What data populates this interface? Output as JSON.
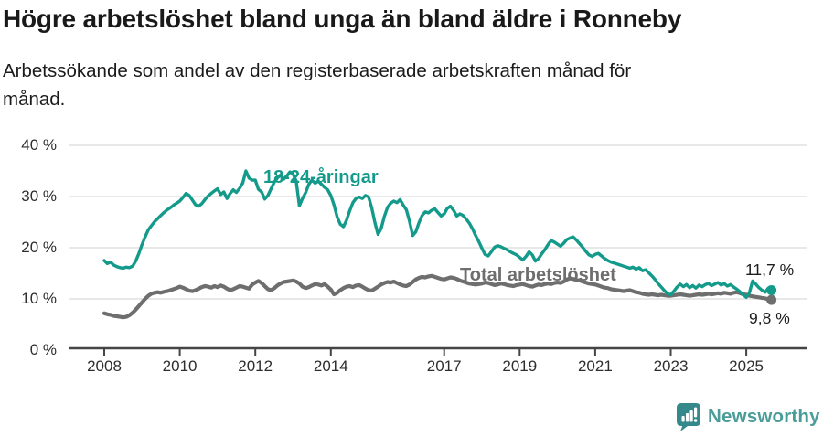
{
  "header": {
    "title": "Högre arbetslöshet bland unga än bland äldre i Ronneby",
    "subtitle": "Arbetssökande som andel av den registerbaserade arbetskraften månad för månad.",
    "subtitle_lines": [
      "Arbetssökande som andel av den registerbaserade arbetskraften månad för",
      "månad."
    ]
  },
  "chart_data": {
    "type": "line",
    "title": "Högre arbetslöshet bland unga än bland äldre i Ronneby",
    "subtitle": "Arbetssökande som andel av den registerbaserade arbetskraften månad för månad.",
    "x_unit": "month",
    "x_start": "2008-01",
    "x_end": "2025-09",
    "x_tick_years": [
      2008,
      2010,
      2012,
      2014,
      2017,
      2019,
      2021,
      2023,
      2025
    ],
    "y_ticks": [
      0,
      10,
      20,
      30,
      40
    ],
    "y_tick_labels": [
      "0 %",
      "10 %",
      "20 %",
      "30 %",
      "40 %"
    ],
    "ylim": [
      0,
      40
    ],
    "grid": "horizontal",
    "legend_position": "inline-labels",
    "series": [
      {
        "name": "18-24-åringar",
        "color": "#149a8b",
        "end_label": "11,7 %",
        "end_value": 11.7,
        "values": [
          17.5,
          16.9,
          17.2,
          16.6,
          16.3,
          16.1,
          16.0,
          16.2,
          16.1,
          16.4,
          17.4,
          18.9,
          20.6,
          22.1,
          23.5,
          24.3,
          25.1,
          25.7,
          26.3,
          26.9,
          27.4,
          27.8,
          28.3,
          28.7,
          29.1,
          29.8,
          30.6,
          30.2,
          29.3,
          28.4,
          28.1,
          28.6,
          29.4,
          30.1,
          30.6,
          31.1,
          31.5,
          30.4,
          30.9,
          29.6,
          30.6,
          31.3,
          30.8,
          31.6,
          32.6,
          35.0,
          33.6,
          33.2,
          33.2,
          31.4,
          30.9,
          29.5,
          30.2,
          31.5,
          32.8,
          33.6,
          34.2,
          33.4,
          34.0,
          34.8,
          34.4,
          33.0,
          28.2,
          29.6,
          30.8,
          32.4,
          33.2,
          32.6,
          33.0,
          32.4,
          31.8,
          31.3,
          30.2,
          28.4,
          26.0,
          24.6,
          24.1,
          25.4,
          27.2,
          28.8,
          29.6,
          29.9,
          29.6,
          30.2,
          29.9,
          27.8,
          24.9,
          22.6,
          23.8,
          26.1,
          27.9,
          28.7,
          29.1,
          28.8,
          29.4,
          28.3,
          27.4,
          25.2,
          22.4,
          23.1,
          24.9,
          26.3,
          27.0,
          26.8,
          27.3,
          27.6,
          26.9,
          26.2,
          26.6,
          27.7,
          28.1,
          27.3,
          26.2,
          26.6,
          26.3,
          25.6,
          24.8,
          23.7,
          22.4,
          21.2,
          19.9,
          18.7,
          18.4,
          19.2,
          20.1,
          20.4,
          20.2,
          19.9,
          19.6,
          19.2,
          18.9,
          18.6,
          18.1,
          17.6,
          18.3,
          19.2,
          18.6,
          17.4,
          17.9,
          18.8,
          19.6,
          20.6,
          21.4,
          21.1,
          20.7,
          20.3,
          20.9,
          21.6,
          21.9,
          22.1,
          21.5,
          20.8,
          20.1,
          19.3,
          18.6,
          18.3,
          18.7,
          18.9,
          18.4,
          17.9,
          17.5,
          17.2,
          17.0,
          16.8,
          16.6,
          16.4,
          16.2,
          16.0,
          16.2,
          15.8,
          16.1,
          15.5,
          15.7,
          15.1,
          14.5,
          13.8,
          13.0,
          12.3,
          11.6,
          11.0,
          10.8,
          11.5,
          12.3,
          12.9,
          12.4,
          12.8,
          12.2,
          12.6,
          12.1,
          12.7,
          12.4,
          12.8,
          13.0,
          12.6,
          12.9,
          13.2,
          12.7,
          13.0,
          12.5,
          12.8,
          12.3,
          11.9,
          11.4,
          10.8,
          10.3,
          11.2,
          13.5,
          12.9,
          12.2,
          11.7,
          11.3,
          12.1,
          11.7
        ]
      },
      {
        "name": "Total arbetslöshet",
        "color": "#6e6e6e",
        "end_label": "9,8 %",
        "end_value": 9.8,
        "values": [
          7.2,
          7.0,
          6.9,
          6.7,
          6.6,
          6.5,
          6.4,
          6.5,
          6.8,
          7.3,
          7.9,
          8.6,
          9.3,
          10.0,
          10.6,
          11.0,
          11.2,
          11.3,
          11.2,
          11.4,
          11.5,
          11.7,
          11.9,
          12.1,
          12.4,
          12.2,
          11.9,
          11.6,
          11.5,
          11.7,
          12.0,
          12.3,
          12.5,
          12.4,
          12.2,
          12.5,
          12.3,
          12.6,
          12.4,
          12.0,
          11.7,
          11.9,
          12.2,
          12.5,
          12.4,
          12.2,
          12.0,
          12.8,
          13.2,
          13.5,
          13.1,
          12.5,
          11.9,
          11.7,
          12.1,
          12.6,
          13.0,
          13.3,
          13.4,
          13.5,
          13.6,
          13.4,
          13.0,
          12.4,
          12.1,
          12.3,
          12.6,
          12.9,
          12.8,
          12.6,
          12.9,
          12.4,
          11.8,
          10.9,
          11.2,
          11.7,
          12.1,
          12.4,
          12.5,
          12.3,
          12.6,
          12.7,
          12.4,
          12.0,
          11.7,
          11.6,
          12.0,
          12.4,
          12.8,
          13.1,
          13.3,
          13.2,
          13.4,
          13.1,
          12.8,
          12.6,
          12.5,
          12.8,
          13.3,
          13.8,
          14.1,
          14.3,
          14.2,
          14.4,
          14.5,
          14.3,
          14.1,
          13.9,
          13.8,
          14.0,
          14.2,
          14.1,
          13.9,
          13.6,
          13.4,
          13.2,
          13.0,
          12.9,
          12.8,
          12.9,
          13.0,
          13.2,
          13.1,
          12.9,
          12.7,
          12.8,
          13.0,
          12.9,
          12.7,
          12.6,
          12.5,
          12.7,
          12.8,
          12.9,
          12.7,
          12.5,
          12.4,
          12.6,
          12.8,
          12.7,
          12.9,
          13.0,
          12.9,
          13.1,
          13.2,
          13.1,
          13.4,
          13.8,
          14.0,
          13.9,
          13.7,
          13.6,
          13.4,
          13.2,
          13.0,
          12.9,
          12.8,
          12.6,
          12.4,
          12.2,
          12.1,
          11.9,
          11.8,
          11.7,
          11.6,
          11.5,
          11.6,
          11.7,
          11.5,
          11.3,
          11.2,
          11.0,
          10.9,
          10.8,
          10.9,
          10.8,
          10.7,
          10.8,
          10.7,
          10.6,
          10.6,
          10.7,
          10.8,
          10.9,
          10.8,
          10.7,
          10.6,
          10.7,
          10.8,
          10.9,
          10.8,
          10.9,
          11.0,
          10.9,
          11.0,
          11.1,
          11.0,
          11.2,
          11.1,
          11.0,
          11.2,
          11.3,
          11.1,
          10.9,
          10.8,
          10.6,
          10.5,
          10.4,
          10.3,
          10.2,
          10.1,
          9.9,
          9.8
        ]
      }
    ]
  },
  "footer": {
    "brand": "Newsworthy",
    "brand_color": "#35898a",
    "wordmark_color": "#4a9c98"
  }
}
